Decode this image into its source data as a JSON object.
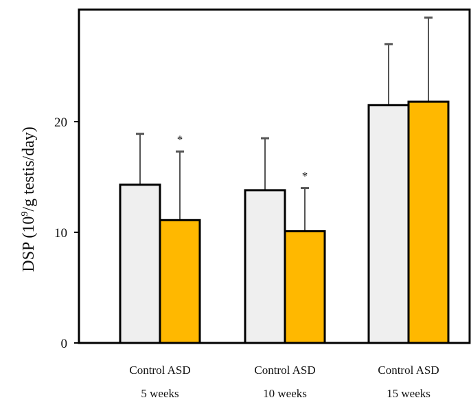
{
  "chart_data": {
    "type": "bar",
    "ylabel_prefix": "DSP (10",
    "ylabel_sup": "9",
    "ylabel_suffix": "/g testis/day)",
    "ylim": [
      0,
      30
    ],
    "yticks": [
      "0",
      "10",
      "20"
    ],
    "grid": false,
    "groups": [
      {
        "label": "5 weeks",
        "bars": [
          {
            "name": "Control",
            "value": 14.3,
            "error": 4.6,
            "color": "#efefef",
            "significance": ""
          },
          {
            "name": "ASD",
            "value": 11.1,
            "error": 6.2,
            "color": "#ffb800",
            "significance": "*"
          }
        ]
      },
      {
        "label": "10 weeks",
        "bars": [
          {
            "name": "Control",
            "value": 13.8,
            "error": 4.7,
            "color": "#efefef",
            "significance": ""
          },
          {
            "name": "ASD",
            "value": 10.1,
            "error": 3.9,
            "color": "#ffb800",
            "significance": "*"
          }
        ]
      },
      {
        "label": "15 weeks",
        "bars": [
          {
            "name": "Control",
            "value": 21.5,
            "error": 5.5,
            "color": "#efefef",
            "significance": ""
          },
          {
            "name": "ASD",
            "value": 21.8,
            "error": 7.6,
            "color": "#ffb800",
            "significance": ""
          }
        ]
      }
    ]
  }
}
